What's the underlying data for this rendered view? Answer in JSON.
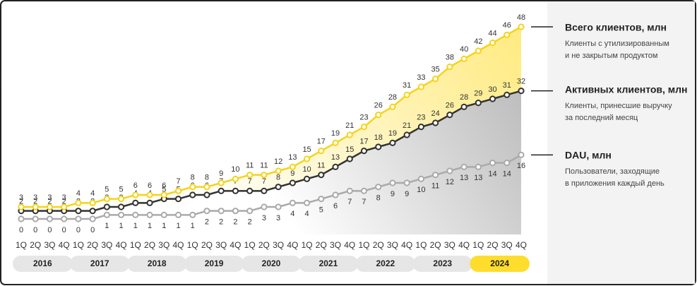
{
  "chart_data": {
    "type": "line",
    "categories": [
      "1Q",
      "2Q",
      "3Q",
      "4Q",
      "1Q",
      "2Q",
      "3Q",
      "4Q",
      "1Q",
      "2Q",
      "3Q",
      "4Q",
      "1Q",
      "2Q",
      "3Q",
      "4Q",
      "1Q",
      "2Q",
      "3Q",
      "4Q",
      "1Q",
      "2Q",
      "3Q",
      "4Q",
      "1Q",
      "2Q",
      "3Q",
      "4Q",
      "1Q",
      "2Q",
      "3Q",
      "4Q",
      "1Q",
      "2Q",
      "3Q",
      "4Q"
    ],
    "years": [
      {
        "label": "2016",
        "color": "#e6e6e6"
      },
      {
        "label": "2017",
        "color": "#e6e6e6"
      },
      {
        "label": "2018",
        "color": "#e6e6e6"
      },
      {
        "label": "2019",
        "color": "#e6e6e6"
      },
      {
        "label": "2020",
        "color": "#e6e6e6"
      },
      {
        "label": "2021",
        "color": "#e6e6e6"
      },
      {
        "label": "2022",
        "color": "#e6e6e6"
      },
      {
        "label": "2023",
        "color": "#e6e6e6"
      },
      {
        "label": "2024",
        "color": "#ffdd2d"
      }
    ],
    "ylim": [
      0,
      50
    ],
    "series": [
      {
        "name": "Всего клиентов, млн",
        "description": [
          "Клиенты с утилизированным",
          "и не закрытым продуктом"
        ],
        "color": "#ffdd2d",
        "values": [
          3,
          3,
          3,
          3,
          4,
          4,
          5,
          5,
          6,
          6,
          6,
          7,
          8,
          8,
          9,
          10,
          11,
          11,
          12,
          13,
          15,
          17,
          19,
          21,
          23,
          26,
          28,
          31,
          33,
          35,
          38,
          40,
          42,
          44,
          46,
          48
        ]
      },
      {
        "name": "Активных клиентов, млн",
        "description": [
          "Клиенты, принесшие выручку",
          "за последний месяц"
        ],
        "color": "#333333",
        "values": [
          2,
          2,
          2,
          2,
          2,
          2,
          3,
          3,
          4,
          4,
          5,
          5,
          6,
          6,
          7,
          7,
          7,
          7,
          8,
          9,
          10,
          11,
          13,
          15,
          17,
          18,
          19,
          21,
          23,
          24,
          26,
          28,
          29,
          30,
          31,
          32
        ]
      },
      {
        "name": "DAU, млн",
        "description": [
          "Пользователи, заходящие",
          "в приложения каждый день"
        ],
        "color": "#b3b3b3",
        "values": [
          0,
          0,
          0,
          0,
          0,
          0,
          1,
          1,
          1,
          1,
          1,
          1,
          1,
          2,
          2,
          2,
          2,
          3,
          3,
          4,
          4,
          5,
          6,
          7,
          7,
          8,
          9,
          9,
          10,
          11,
          12,
          13,
          13,
          14,
          14,
          16
        ]
      }
    ]
  }
}
